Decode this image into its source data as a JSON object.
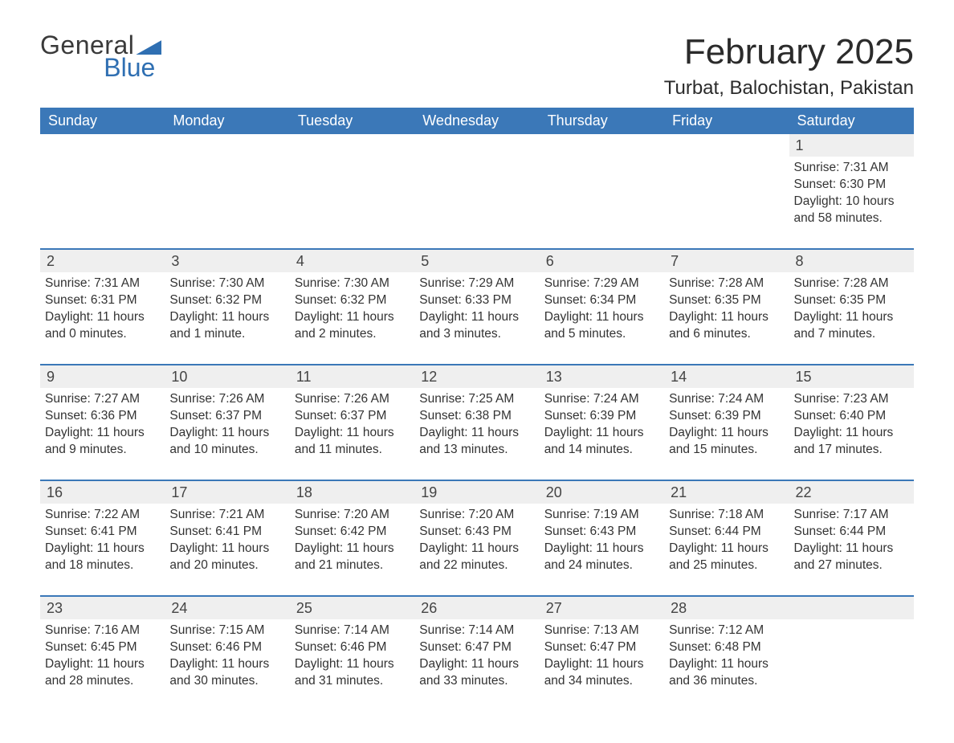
{
  "brand": {
    "part1": "General",
    "part2": "Blue",
    "accent_color": "#2f6fb2"
  },
  "title": "February 2025",
  "location": "Turbat, Balochistan, Pakistan",
  "header_bg": "#3b78b8",
  "daynum_bg": "#efefef",
  "text_color": "#2b2b2b",
  "weekdays": [
    "Sunday",
    "Monday",
    "Tuesday",
    "Wednesday",
    "Thursday",
    "Friday",
    "Saturday"
  ],
  "weeks": [
    [
      null,
      null,
      null,
      null,
      null,
      null,
      {
        "n": "1",
        "sunrise": "7:31 AM",
        "sunset": "6:30 PM",
        "daylight": "10 hours and 58 minutes."
      }
    ],
    [
      {
        "n": "2",
        "sunrise": "7:31 AM",
        "sunset": "6:31 PM",
        "daylight": "11 hours and 0 minutes."
      },
      {
        "n": "3",
        "sunrise": "7:30 AM",
        "sunset": "6:32 PM",
        "daylight": "11 hours and 1 minute."
      },
      {
        "n": "4",
        "sunrise": "7:30 AM",
        "sunset": "6:32 PM",
        "daylight": "11 hours and 2 minutes."
      },
      {
        "n": "5",
        "sunrise": "7:29 AM",
        "sunset": "6:33 PM",
        "daylight": "11 hours and 3 minutes."
      },
      {
        "n": "6",
        "sunrise": "7:29 AM",
        "sunset": "6:34 PM",
        "daylight": "11 hours and 5 minutes."
      },
      {
        "n": "7",
        "sunrise": "7:28 AM",
        "sunset": "6:35 PM",
        "daylight": "11 hours and 6 minutes."
      },
      {
        "n": "8",
        "sunrise": "7:28 AM",
        "sunset": "6:35 PM",
        "daylight": "11 hours and 7 minutes."
      }
    ],
    [
      {
        "n": "9",
        "sunrise": "7:27 AM",
        "sunset": "6:36 PM",
        "daylight": "11 hours and 9 minutes."
      },
      {
        "n": "10",
        "sunrise": "7:26 AM",
        "sunset": "6:37 PM",
        "daylight": "11 hours and 10 minutes."
      },
      {
        "n": "11",
        "sunrise": "7:26 AM",
        "sunset": "6:37 PM",
        "daylight": "11 hours and 11 minutes."
      },
      {
        "n": "12",
        "sunrise": "7:25 AM",
        "sunset": "6:38 PM",
        "daylight": "11 hours and 13 minutes."
      },
      {
        "n": "13",
        "sunrise": "7:24 AM",
        "sunset": "6:39 PM",
        "daylight": "11 hours and 14 minutes."
      },
      {
        "n": "14",
        "sunrise": "7:24 AM",
        "sunset": "6:39 PM",
        "daylight": "11 hours and 15 minutes."
      },
      {
        "n": "15",
        "sunrise": "7:23 AM",
        "sunset": "6:40 PM",
        "daylight": "11 hours and 17 minutes."
      }
    ],
    [
      {
        "n": "16",
        "sunrise": "7:22 AM",
        "sunset": "6:41 PM",
        "daylight": "11 hours and 18 minutes."
      },
      {
        "n": "17",
        "sunrise": "7:21 AM",
        "sunset": "6:41 PM",
        "daylight": "11 hours and 20 minutes."
      },
      {
        "n": "18",
        "sunrise": "7:20 AM",
        "sunset": "6:42 PM",
        "daylight": "11 hours and 21 minutes."
      },
      {
        "n": "19",
        "sunrise": "7:20 AM",
        "sunset": "6:43 PM",
        "daylight": "11 hours and 22 minutes."
      },
      {
        "n": "20",
        "sunrise": "7:19 AM",
        "sunset": "6:43 PM",
        "daylight": "11 hours and 24 minutes."
      },
      {
        "n": "21",
        "sunrise": "7:18 AM",
        "sunset": "6:44 PM",
        "daylight": "11 hours and 25 minutes."
      },
      {
        "n": "22",
        "sunrise": "7:17 AM",
        "sunset": "6:44 PM",
        "daylight": "11 hours and 27 minutes."
      }
    ],
    [
      {
        "n": "23",
        "sunrise": "7:16 AM",
        "sunset": "6:45 PM",
        "daylight": "11 hours and 28 minutes."
      },
      {
        "n": "24",
        "sunrise": "7:15 AM",
        "sunset": "6:46 PM",
        "daylight": "11 hours and 30 minutes."
      },
      {
        "n": "25",
        "sunrise": "7:14 AM",
        "sunset": "6:46 PM",
        "daylight": "11 hours and 31 minutes."
      },
      {
        "n": "26",
        "sunrise": "7:14 AM",
        "sunset": "6:47 PM",
        "daylight": "11 hours and 33 minutes."
      },
      {
        "n": "27",
        "sunrise": "7:13 AM",
        "sunset": "6:47 PM",
        "daylight": "11 hours and 34 minutes."
      },
      {
        "n": "28",
        "sunrise": "7:12 AM",
        "sunset": "6:48 PM",
        "daylight": "11 hours and 36 minutes."
      },
      null
    ]
  ],
  "labels": {
    "sunrise": "Sunrise: ",
    "sunset": "Sunset: ",
    "daylight": "Daylight: "
  }
}
